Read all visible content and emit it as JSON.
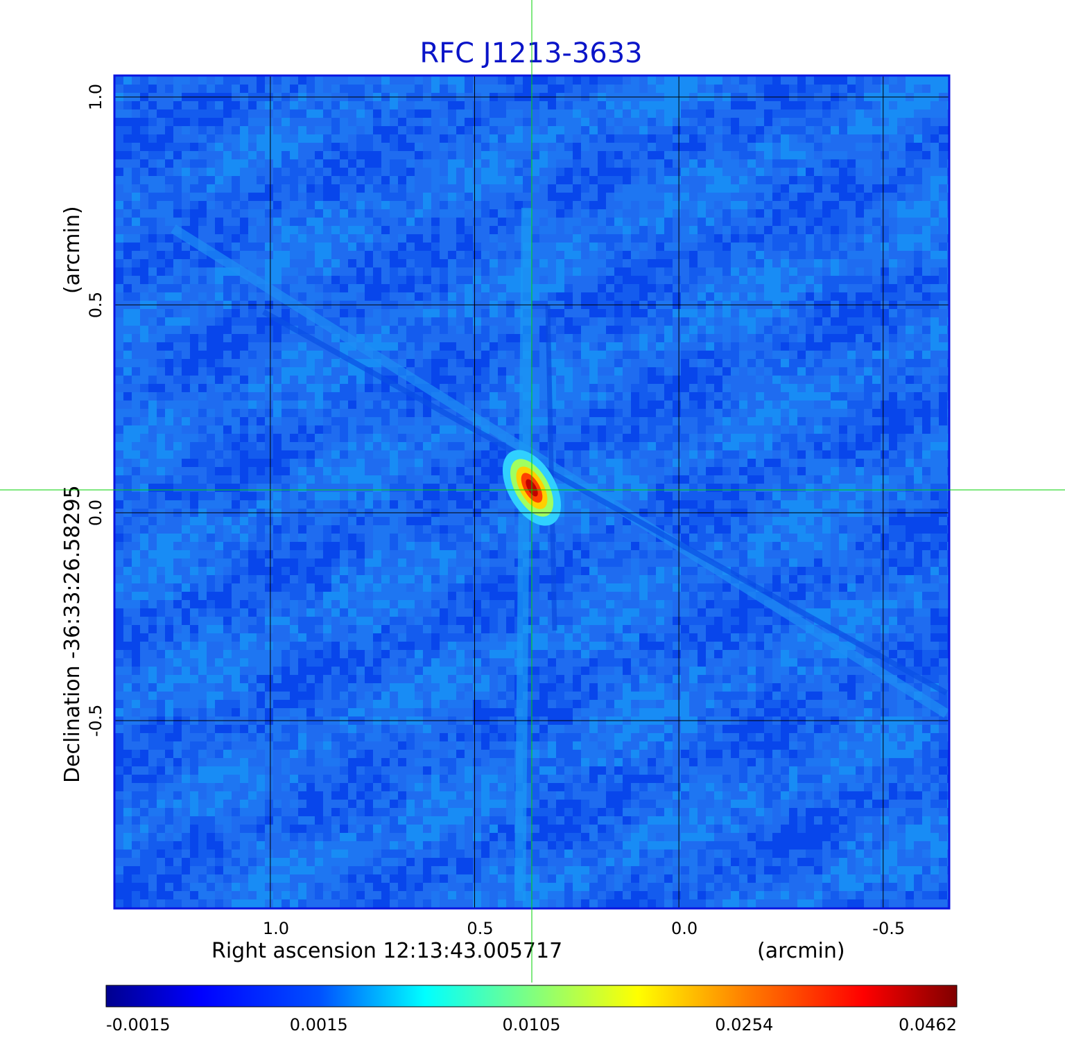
{
  "chart_data": {
    "type": "heatmap",
    "title": "RFC J1213-3633",
    "xlabel": "Right ascension  12:13:43.005717",
    "xlabel_unit": "(arcmin)",
    "ylabel": "Declination  -36:33:26.58295",
    "ylabel_unit": "(arcmin)",
    "xlim": [
      1.38,
      -0.66
    ],
    "ylim": [
      -0.95,
      1.05
    ],
    "x_ticks": [
      1.0,
      0.5,
      0.0,
      -0.5
    ],
    "x_tick_labels": [
      "1.0",
      "0.5",
      "0.0",
      "-0.5"
    ],
    "y_ticks": [
      1.0,
      0.5,
      0.0,
      -0.5
    ],
    "y_tick_labels": [
      "1.0",
      "0.5",
      "0.0",
      "-0.5"
    ],
    "grid": true,
    "crosshair": {
      "x": 0.36,
      "y": 0.055,
      "color": "#00d000"
    },
    "source": {
      "x": 0.36,
      "y": 0.06,
      "peak": 0.0462,
      "position_angle_deg": -30
    },
    "colorbar": {
      "placement": "bottom",
      "colormap": "jet",
      "ticks": [
        -0.0015,
        0.0015,
        0.0105,
        0.0254,
        0.0462
      ],
      "tick_labels": [
        "-0.0015",
        "0.0015",
        "0.0105",
        "0.0254",
        "0.0462"
      ]
    }
  }
}
